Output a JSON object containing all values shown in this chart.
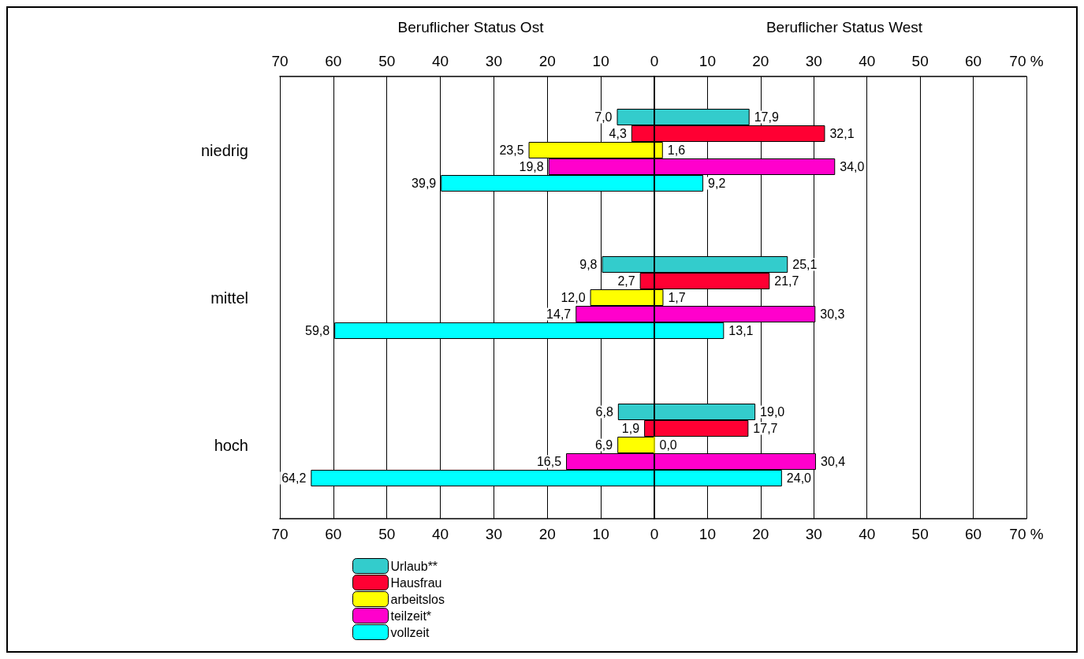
{
  "chart_data": [
    {
      "type": "bar",
      "orientation": "horizontal",
      "title": "Beruflicher Status Ost",
      "categories": [
        "niedrig",
        "mittel",
        "hoch"
      ],
      "xlim": [
        70,
        0
      ],
      "xticks": [
        70,
        60,
        50,
        40,
        30,
        20,
        10,
        {
          "value": 0,
          "label": null
        }
      ],
      "x2lim": [
        70,
        0
      ],
      "x2ticks": [
        70,
        60,
        50,
        40,
        30,
        20,
        10,
        {
          "value": 0,
          "label": null
        }
      ],
      "grid": "x",
      "legend": "bottom left",
      "series": [
        {
          "name": "Urlaub**",
          "color": "#33cccc",
          "values": [
            7.0,
            9.8,
            6.8
          ],
          "value_labels": [
            "7,0",
            "9,8",
            "6,8"
          ]
        },
        {
          "name": "Hausfrau",
          "color": "#ff0033",
          "values": [
            4.3,
            2.7,
            1.9
          ],
          "value_labels": [
            "4,3",
            "2,7",
            "1,9"
          ]
        },
        {
          "name": "arbeitslos",
          "color": "#ffff00",
          "values": [
            23.5,
            12.0,
            6.9
          ],
          "value_labels": [
            "23,5",
            "12,0",
            "6,9"
          ]
        },
        {
          "name": "teilzeit*",
          "color": "#ff00cc",
          "values": [
            19.8,
            14.7,
            16.5
          ],
          "value_labels": [
            "19,8",
            "14,7",
            "16,5"
          ]
        },
        {
          "name": "vollzeit",
          "color": "#00ffff",
          "values": [
            39.9,
            59.8,
            64.2
          ],
          "value_labels": [
            "39,9",
            "59,8",
            "64,2"
          ]
        }
      ]
    },
    {
      "type": "bar",
      "orientation": "horizontal",
      "title": "Beruflicher Status West",
      "categories": [
        null,
        null,
        null
      ],
      "xlim": [
        0,
        70
      ],
      "xticks": [
        0,
        10,
        20,
        30,
        40,
        50,
        60,
        {
          "value": 70,
          "label": "70 %"
        }
      ],
      "x2lim": [
        0,
        70
      ],
      "x2ticks": [
        0,
        10,
        20,
        30,
        40,
        50,
        60,
        {
          "value": 70,
          "label": "70 %"
        }
      ],
      "grid": "x",
      "tick_labels": "x",
      "series": [
        {
          "color": "#33cccc",
          "values": [
            17.9,
            25.1,
            19.0
          ],
          "value_labels": [
            "17,9",
            "25,1",
            "19,0"
          ]
        },
        {
          "color": "#ff0033",
          "values": [
            32.1,
            21.7,
            17.7
          ],
          "value_labels": [
            "32,1",
            "21,7",
            "17,7"
          ]
        },
        {
          "color": "#ffff00",
          "values": [
            1.6,
            1.7,
            0.0
          ],
          "value_labels": [
            "1,6",
            "1,7",
            "0,0"
          ]
        },
        {
          "color": "#ff00cc",
          "values": [
            34.0,
            30.3,
            30.4
          ],
          "value_labels": [
            "34,0",
            "30,3",
            "30,4"
          ]
        },
        {
          "color": "#00ffff",
          "values": [
            9.2,
            13.1,
            24.0
          ],
          "value_labels": [
            "9,2",
            "13,1",
            "24,0"
          ]
        }
      ]
    }
  ]
}
